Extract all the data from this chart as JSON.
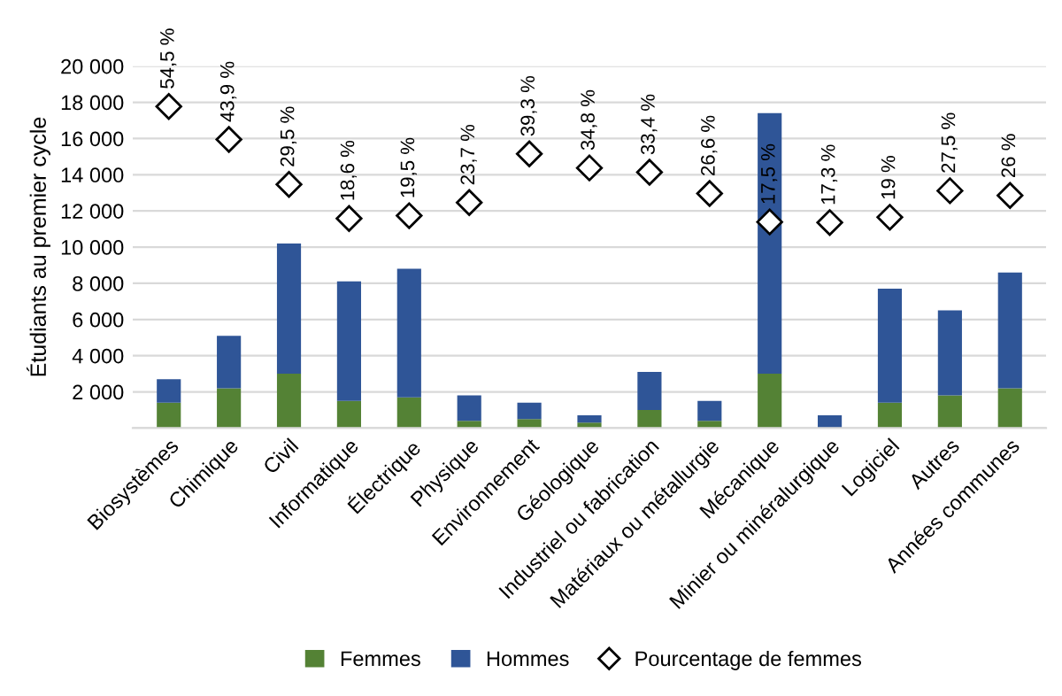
{
  "chart_data": {
    "type": "bar",
    "stacked": true,
    "ylabel": "Étudiants au premier cycle",
    "categories": [
      "Biosystèmes",
      "Chimique",
      "Civil",
      "Informatique",
      "Électrique",
      "Physique",
      "Environnement",
      "Géologique",
      "Industriel ou fabrication",
      "Matériaux ou métallurgie",
      "Mécanique",
      "Minier ou minéralurgique",
      "Logiciel",
      "Autres",
      "Années communes"
    ],
    "series": [
      {
        "name": "Femmes",
        "color": "#548235",
        "values": [
          1400,
          2200,
          3000,
          1500,
          1700,
          400,
          500,
          300,
          1000,
          400,
          3000,
          null,
          1400,
          1800,
          2200
        ]
      },
      {
        "name": "Hommes",
        "color": "#2f5597",
        "values": [
          1300,
          2900,
          7200,
          6600,
          7100,
          1400,
          900,
          400,
          2100,
          1100,
          14400,
          700,
          6300,
          4700,
          6400
        ]
      },
      {
        "name": "Pourcentage de femmes",
        "type": "scatter",
        "axis": "y2",
        "color": "#ffffff",
        "marker": "diamond",
        "values": [
          54.5,
          43.9,
          29.5,
          18.6,
          19.5,
          23.7,
          39.3,
          34.8,
          33.4,
          26.6,
          17.5,
          17.3,
          19,
          27.5,
          26
        ],
        "value_labels": [
          "54,5 %",
          "43,9 %",
          "29,5 %",
          "18,6 %",
          "19,5 %",
          "23,7 %",
          "39,3 %",
          "34,8 %",
          "33,4 %",
          "26,6 %",
          "17,5 %",
          "17,3 %",
          "19 %",
          "27,5 %",
          "26 %"
        ]
      }
    ],
    "ylim": [
      0,
      20000
    ],
    "yticks": [
      {
        "value": 0,
        "label": null
      },
      {
        "value": 2000,
        "label": "2 000"
      },
      {
        "value": 4000,
        "label": "4 000"
      },
      {
        "value": 6000,
        "label": "6 000"
      },
      {
        "value": 8000,
        "label": "8 000"
      },
      {
        "value": 10000,
        "label": "10 000"
      },
      {
        "value": 12000,
        "label": "12 000"
      },
      {
        "value": 14000,
        "label": "14 000"
      },
      {
        "value": 16000,
        "label": "16 000"
      },
      {
        "value": 18000,
        "label": "18 000"
      },
      {
        "value": 20000,
        "label": "20 000"
      }
    ],
    "y2lim": [
      -48.5,
      67.4
    ],
    "grid": "y",
    "legend": "bottom"
  }
}
